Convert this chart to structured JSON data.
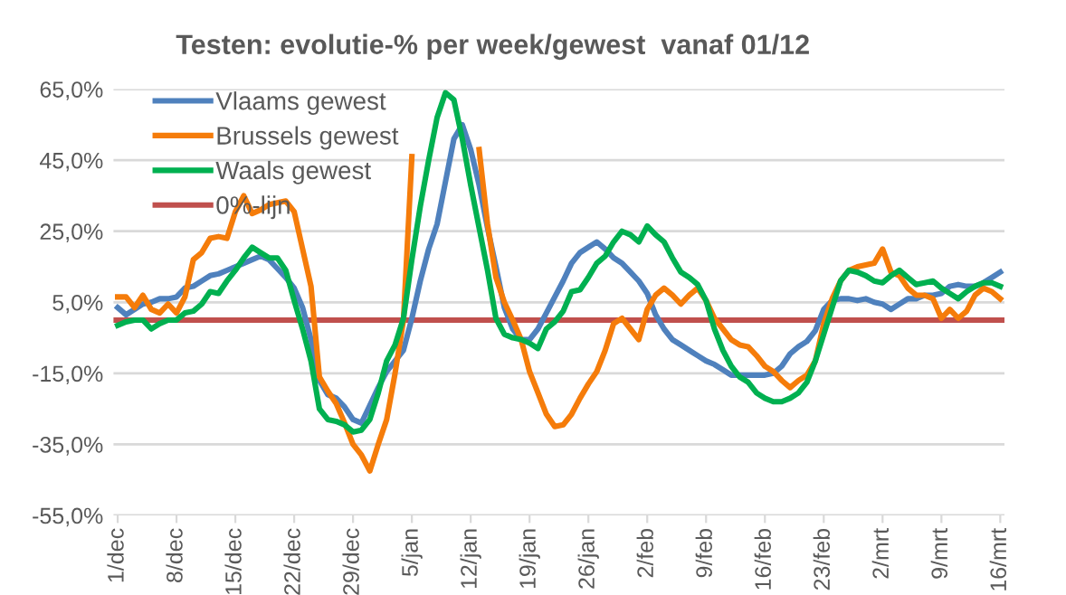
{
  "chart_data": {
    "type": "line",
    "title": "Testen: evolutie-% per week/gewest  vanaf 01/12",
    "categories": [
      "1/dec",
      null,
      null,
      null,
      null,
      null,
      null,
      "8/dec",
      null,
      null,
      null,
      null,
      null,
      null,
      "15/dec",
      null,
      null,
      null,
      null,
      null,
      null,
      "22/dec",
      null,
      null,
      null,
      null,
      null,
      null,
      "29/dec",
      null,
      null,
      null,
      null,
      null,
      null,
      "5/jan",
      null,
      null,
      null,
      null,
      null,
      null,
      "12/jan",
      null,
      null,
      null,
      null,
      null,
      null,
      "19/jan",
      null,
      null,
      null,
      null,
      null,
      null,
      "26/jan",
      null,
      null,
      null,
      null,
      null,
      null,
      "2/feb",
      null,
      null,
      null,
      null,
      null,
      null,
      "9/feb",
      null,
      null,
      null,
      null,
      null,
      null,
      "16/feb",
      null,
      null,
      null,
      null,
      null,
      null,
      "23/feb",
      null,
      null,
      null,
      null,
      null,
      null,
      "2/mrt",
      null,
      null,
      null,
      null,
      null,
      null,
      "9/mrt",
      null,
      null,
      null,
      null,
      null,
      null,
      "16/mrt"
    ],
    "series": [
      {
        "name": "Vlaams gewest",
        "color": "#4f81bd",
        "values": [
          3.5,
          1.5,
          3,
          4.5,
          5,
          6,
          6,
          6.5,
          9,
          9.5,
          11,
          12.5,
          13,
          14,
          15,
          16,
          17,
          18,
          17,
          14.5,
          12,
          9,
          3.5,
          -5.5,
          -17,
          -21,
          -22,
          -24.5,
          -28,
          -29,
          -24,
          -19,
          -14.5,
          -11.5,
          -8.5,
          0.5,
          11,
          20,
          27,
          39,
          51,
          55,
          48,
          38,
          26,
          15,
          3.5,
          -2.5,
          -5.5,
          -5.5,
          -2.5,
          2,
          6.5,
          11,
          16,
          19,
          20.5,
          22,
          20,
          17.5,
          16,
          13.5,
          11,
          7.5,
          1.5,
          -2.5,
          -5.5,
          -7,
          -8.5,
          -10,
          -11.5,
          -12.5,
          -14,
          -15.5,
          -15.5,
          -15.5,
          -15.5,
          -15.5,
          -15,
          -13,
          -9.5,
          -7.5,
          -6,
          -3,
          3,
          5.5,
          6,
          6,
          5.5,
          6,
          5,
          4.5,
          3,
          4.5,
          6,
          6,
          7,
          7,
          7.5,
          9.5,
          10,
          9.5,
          9.5,
          10.5,
          12,
          13.5
        ]
      },
      {
        "name": "Brussels gewest",
        "color": "#f57c0a",
        "values": [
          6.5,
          6.5,
          3.5,
          7,
          3,
          2,
          4.5,
          2,
          6.5,
          17,
          19,
          23,
          23.5,
          23,
          30.5,
          35,
          30,
          31,
          32.5,
          33,
          33.5,
          30.5,
          20,
          9.5,
          -16,
          -20,
          -23.5,
          -29,
          -35,
          -38,
          -42.5,
          -35,
          -28,
          -15,
          0,
          46,
          null,
          null,
          null,
          null,
          null,
          null,
          null,
          48,
          27,
          12,
          5,
          0,
          -5.5,
          -14.5,
          -20.5,
          -26.5,
          -30,
          -29.5,
          -26.5,
          -22,
          -18,
          -14.5,
          -8.5,
          -1,
          0.5,
          -2.5,
          -5.5,
          3,
          7,
          9,
          7,
          4.5,
          7,
          9,
          5.5,
          0.5,
          -2.5,
          -5.5,
          -7,
          -7.5,
          -10,
          -13,
          -14.5,
          -17,
          -19,
          -17,
          -15.5,
          -11.5,
          -1,
          6,
          11,
          14,
          15,
          15.5,
          16,
          20,
          13.5,
          12.5,
          9,
          7,
          7,
          6,
          0.5,
          3,
          0.5,
          2.5,
          7,
          9,
          8,
          6
        ]
      },
      {
        "name": "Waals gewest",
        "color": "#00b050",
        "values": [
          -1.5,
          -0.5,
          0,
          0,
          -2.5,
          -1,
          0,
          0,
          2,
          2.5,
          4.5,
          8,
          7.5,
          11,
          14,
          17.5,
          20.5,
          19,
          17.5,
          17.5,
          14,
          5.5,
          -2.5,
          -11.5,
          -25,
          -28,
          -28.5,
          -29.5,
          -31.5,
          -31,
          -28,
          -20.5,
          -11.5,
          -7,
          0.5,
          17,
          32,
          45,
          57,
          64,
          62,
          51,
          38,
          26,
          14,
          0.5,
          -4,
          -5,
          -5.5,
          -6.5,
          -8,
          -2.5,
          -0.5,
          2.5,
          8,
          8.5,
          12,
          16,
          18,
          22,
          25,
          24,
          22,
          26.5,
          24,
          22,
          17.5,
          13.5,
          12,
          10,
          5.5,
          -2.5,
          -8.5,
          -13,
          -16,
          -17.5,
          -20.5,
          -22,
          -23,
          -23,
          -22,
          -20.5,
          -17.5,
          -11.5,
          -4,
          3.5,
          11,
          14,
          13.5,
          12.5,
          11,
          10.5,
          12.5,
          14,
          12,
          10,
          10.5,
          11,
          9,
          7.5,
          6,
          8,
          9.5,
          10.5,
          10.5,
          9.5
        ]
      }
    ],
    "ref_lines": [
      {
        "axis": "y",
        "value": 0,
        "label": "0%-lijn",
        "color": "#c0504d"
      }
    ],
    "ylim": [
      -55,
      65
    ],
    "yticks": [
      {
        "value": -55,
        "label": "-55,0%"
      },
      {
        "value": -35,
        "label": "-35,0%"
      },
      {
        "value": -15,
        "label": "-15,0%"
      },
      {
        "value": 5,
        "label": "5,0%"
      },
      {
        "value": 25,
        "label": "25,0%"
      },
      {
        "value": 45,
        "label": "45,0%"
      },
      {
        "value": 65,
        "label": "65,0%"
      }
    ],
    "grid": "y",
    "legend": "top left"
  }
}
